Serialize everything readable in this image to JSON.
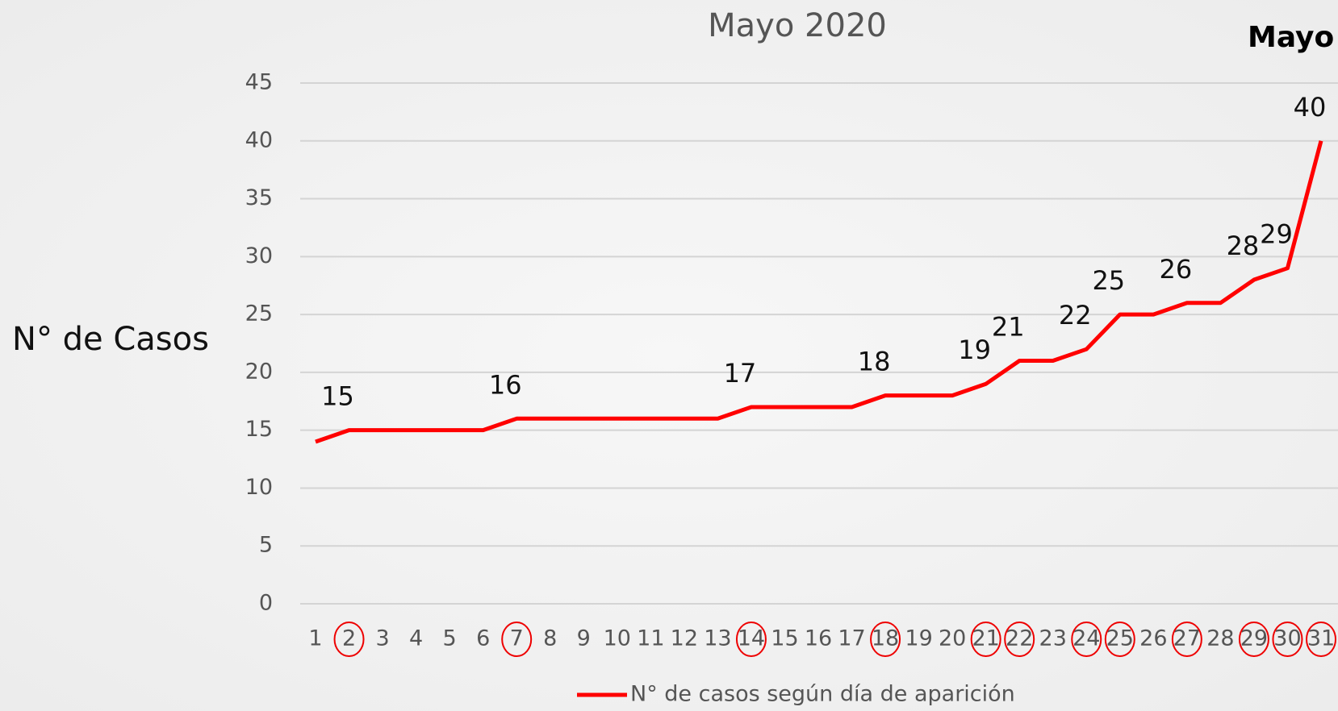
{
  "chart_data": {
    "type": "line",
    "title": "Mayo 2020",
    "corner_title": "Mayo",
    "y_label": "N° de Casos",
    "categories": [
      "1",
      "2",
      "3",
      "4",
      "5",
      "6",
      "7",
      "8",
      "9",
      "10",
      "11",
      "12",
      "13",
      "14",
      "15",
      "16",
      "17",
      "18",
      "19",
      "20",
      "21",
      "22",
      "23",
      "24",
      "25",
      "26",
      "27",
      "28",
      "29",
      "30",
      "31"
    ],
    "series": [
      {
        "name": "N° de casos según día de aparición",
        "color": "#ff0000",
        "values": [
          14,
          15,
          15,
          15,
          15,
          15,
          16,
          16,
          16,
          16,
          16,
          16,
          16,
          17,
          17,
          17,
          17,
          18,
          18,
          18,
          19,
          21,
          21,
          22,
          25,
          25,
          26,
          26,
          28,
          29,
          40
        ]
      }
    ],
    "circled": [
      false,
      true,
      false,
      false,
      false,
      false,
      true,
      false,
      false,
      false,
      false,
      false,
      false,
      true,
      false,
      false,
      false,
      true,
      false,
      false,
      true,
      true,
      false,
      true,
      true,
      false,
      true,
      false,
      true,
      true,
      true
    ],
    "ylim": [
      0,
      45
    ],
    "yticks": [
      0,
      5,
      10,
      15,
      20,
      25,
      30,
      35,
      40,
      45
    ],
    "grid": true,
    "legend": "bottom"
  }
}
